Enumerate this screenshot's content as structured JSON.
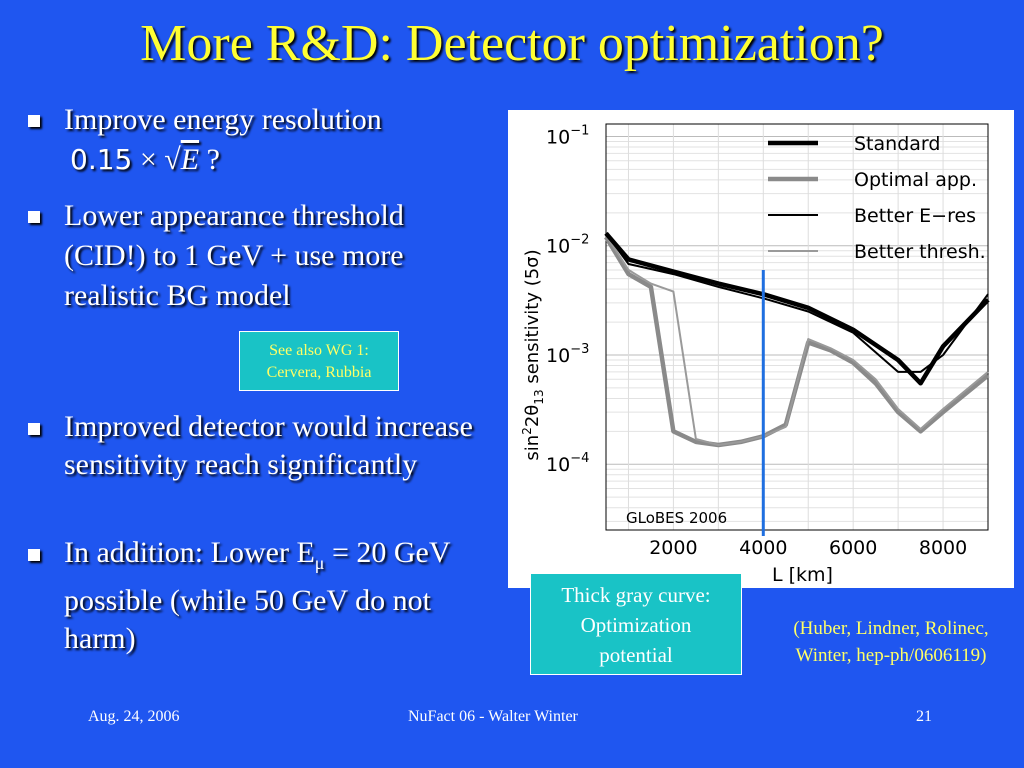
{
  "slide": {
    "title": "More R&D: Detector optimization?",
    "bullets": [
      {
        "text": "Improve energy resolution"
      },
      {
        "text": "Lower appearance threshold (CID!) to 1 GeV + use more realistic BG model"
      },
      {
        "text": "Improved detector would increase sensitivity reach significantly"
      },
      {
        "text_before": "In addition: Lower E",
        "sub": "μ",
        "text_after": " = 20 GeV possible (while 50 GeV do not harm)"
      }
    ],
    "formula": {
      "coef": "0.15",
      "times": "×",
      "sqrt": "√",
      "var": "E",
      "q": " ?"
    },
    "callout_small": {
      "line1": "See also WG 1:",
      "line2": "Cervera, Rubbia"
    },
    "callout_large": {
      "line1": "Thick gray curve:",
      "line2": "Optimization",
      "line3": "potential"
    },
    "citation": {
      "line1": "(Huber, Lindner, Rolinec,",
      "line2": "Winter, hep-ph/0606119)"
    },
    "footer": {
      "date": "Aug. 24, 2006",
      "center": "NuFact 06 - Walter Winter",
      "page": "21"
    },
    "colors": {
      "background": "#1f56f0",
      "title": "#ffff33",
      "callout": "#19c3c6",
      "marker": "#1f6fe0"
    }
  },
  "chart_data": {
    "type": "line",
    "xlabel": "L [km]",
    "ylabel_parts": {
      "pre": "sin",
      "sup": "2",
      "mid": "2θ",
      "sub": "13",
      "post": " sensitivity (5σ)"
    },
    "x_ticks": [
      "2000",
      "4000",
      "6000",
      "8000"
    ],
    "x_tick_values": [
      2000,
      4000,
      6000,
      8000
    ],
    "y_ticks": [
      {
        "base": "10",
        "exp": "−1",
        "value": 0.1
      },
      {
        "base": "10",
        "exp": "−2",
        "value": 0.01
      },
      {
        "base": "10",
        "exp": "−3",
        "value": 0.001
      },
      {
        "base": "10",
        "exp": "−4",
        "value": 0.0001
      }
    ],
    "xlim": [
      500,
      9000
    ],
    "ylim": [
      2.5e-05,
      0.13
    ],
    "y_scale": "log",
    "annotation": "GLoBES 2006",
    "marker_x": 4000,
    "legend_position": "top-right",
    "series": [
      {
        "name": "Standard",
        "color": "#000000",
        "width": 4.5,
        "x": [
          500,
          1000,
          2000,
          3000,
          4000,
          5000,
          6000,
          7000,
          7500,
          8000,
          9000
        ],
        "y": [
          0.013,
          0.0075,
          0.0058,
          0.0045,
          0.0036,
          0.0027,
          0.0017,
          0.0009,
          0.00055,
          0.0012,
          0.0032
        ]
      },
      {
        "name": "Optimal app.",
        "color": "#8a8a8a",
        "width": 4.5,
        "x": [
          500,
          1000,
          1500,
          2000,
          2500,
          3000,
          3500,
          4000,
          4500,
          5000,
          5500,
          6000,
          6500,
          7000,
          7500,
          8000,
          9000
        ],
        "y": [
          0.012,
          0.0055,
          0.0042,
          0.0002,
          0.00016,
          0.00015,
          0.00016,
          0.00018,
          0.00023,
          0.0013,
          0.0011,
          0.00085,
          0.00055,
          0.0003,
          0.0002,
          0.0003,
          0.00065
        ]
      },
      {
        "name": "Better E−res",
        "color": "#000000",
        "width": 2,
        "x": [
          500,
          1000,
          2000,
          3000,
          4000,
          5000,
          6000,
          7000,
          7500,
          8000,
          9000
        ],
        "y": [
          0.013,
          0.0068,
          0.0055,
          0.0042,
          0.0033,
          0.0025,
          0.0016,
          0.0007,
          0.0007,
          0.001,
          0.0036
        ]
      },
      {
        "name": "Better thresh.",
        "color": "#9a9a9a",
        "width": 2,
        "x": [
          500,
          1000,
          1500,
          2000,
          2500,
          3000,
          3500,
          4000,
          4500,
          5000,
          5500,
          6000,
          6500,
          7000,
          7500,
          8000,
          9000
        ],
        "y": [
          0.0125,
          0.006,
          0.0045,
          0.0038,
          0.00017,
          0.00015,
          0.00016,
          0.00018,
          0.00022,
          0.0014,
          0.00115,
          0.0009,
          0.0006,
          0.00032,
          0.00021,
          0.00032,
          0.0007
        ]
      }
    ]
  }
}
